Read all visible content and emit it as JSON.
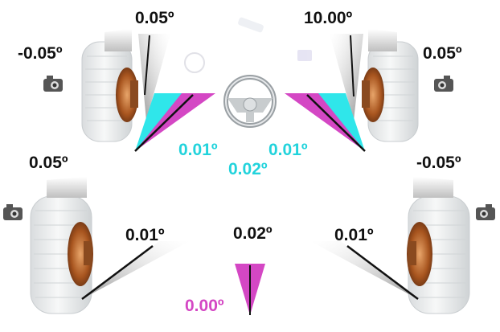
{
  "alignment": {
    "front_left": {
      "camber": "-0.05º",
      "caster": "0.05º"
    },
    "front_right": {
      "camber": "0.05º",
      "caster": "10.00º"
    },
    "rear_left": {
      "camber": "0.05º",
      "toe": "0.01º"
    },
    "rear_right": {
      "camber": "-0.05º",
      "toe": "0.01º"
    },
    "front_toe": {
      "left": "0.01º",
      "right": "0.01º",
      "total": "0.02º"
    },
    "rear_total_toe": "0.02º",
    "thrust_angle": "0.00º"
  },
  "colors": {
    "toe_front": "#2fe6ea",
    "thrust": "#d447c4",
    "tire": "#eceeef",
    "rim": "#b8692e",
    "label": "#111111"
  },
  "icons": [
    "camera-icon",
    "steering-wheel-icon",
    "tire-icon"
  ]
}
